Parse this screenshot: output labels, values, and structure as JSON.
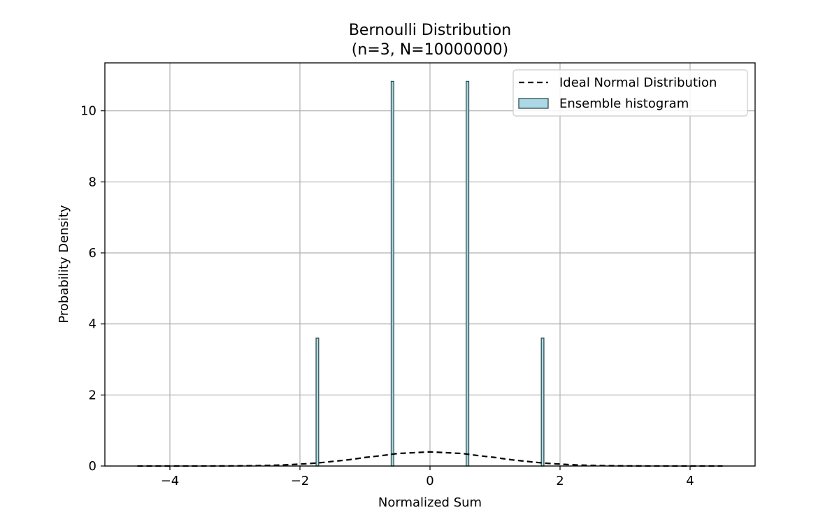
{
  "chart_data": {
    "type": "bar",
    "title": "Bernoulli Distribution",
    "subtitle": "(n=3, N=10000000)",
    "xlabel": "Normalized Sum",
    "ylabel": "Probability Density",
    "xlim": [
      -5,
      5
    ],
    "ylim": [
      0,
      11.35
    ],
    "x_ticks": [
      -4,
      -2,
      0,
      2,
      4
    ],
    "x_tick_labels": [
      "−4",
      "−2",
      "0",
      "2",
      "4"
    ],
    "y_ticks": [
      0,
      2,
      4,
      6,
      8,
      10
    ],
    "y_tick_labels": [
      "0",
      "2",
      "4",
      "6",
      "8",
      "10"
    ],
    "grid": true,
    "legend_position": "top-right",
    "series": [
      {
        "name": "Ideal Normal Distribution",
        "kind": "line",
        "style": "dashed",
        "color": "#000000",
        "x": [
          -4.5,
          -4.0,
          -3.5,
          -3.0,
          -2.5,
          -2.0,
          -1.5,
          -1.0,
          -0.5,
          0.0,
          0.5,
          1.0,
          1.5,
          2.0,
          2.5,
          3.0,
          3.5,
          4.0,
          4.5
        ],
        "y": [
          2e-05,
          0.00013,
          0.00087,
          0.0044,
          0.0175,
          0.054,
          0.1295,
          0.242,
          0.352,
          0.399,
          0.352,
          0.242,
          0.1295,
          0.054,
          0.0175,
          0.0044,
          0.00087,
          0.00013,
          2e-05
        ]
      },
      {
        "name": "Ensemble histogram",
        "kind": "histogram",
        "color": "#add8e6",
        "edge_color": "#2f4f4f",
        "x": [
          -1.732,
          -0.577,
          0.577,
          1.732
        ],
        "y": [
          3.6,
          10.83,
          10.83,
          3.6
        ],
        "bin_width": 0.04
      }
    ]
  }
}
